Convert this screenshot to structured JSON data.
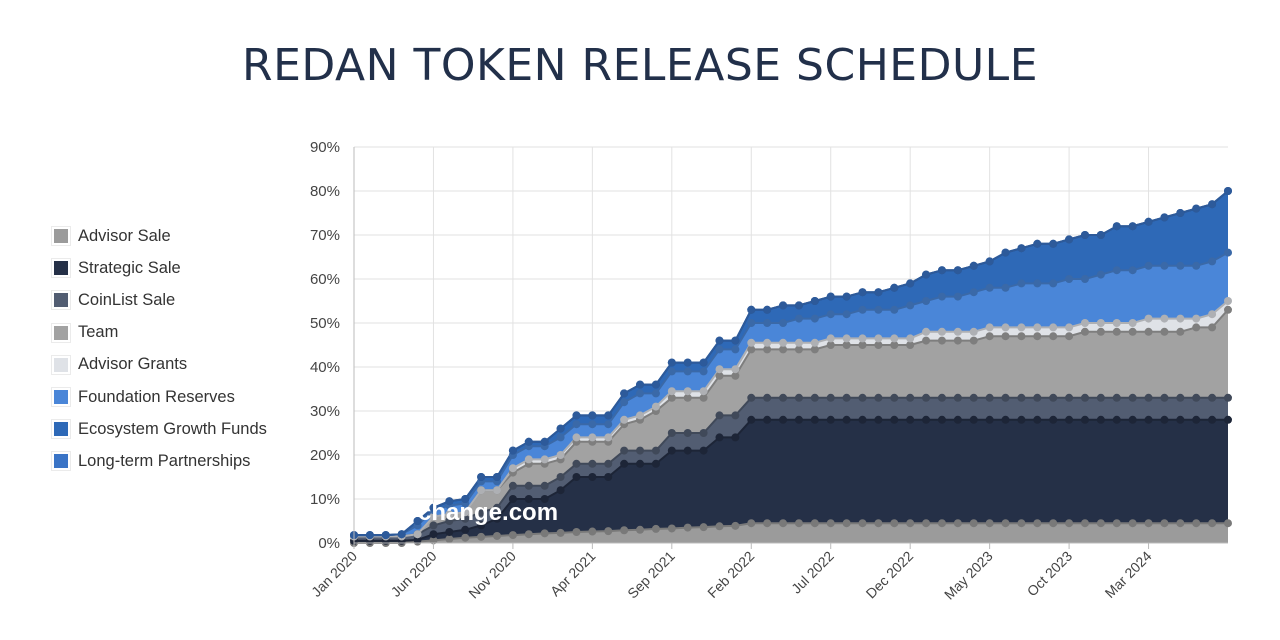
{
  "page": {
    "title": "REDAN TOKEN RELEASE SCHEDULE"
  },
  "watermark": "change.com",
  "chart_data": {
    "type": "area",
    "stacked": true,
    "title": "REDAN TOKEN RELEASE SCHEDULE",
    "xlabel": "",
    "ylabel": "",
    "ylim": [
      0,
      90
    ],
    "yticks": [
      "0%",
      "10%",
      "20%",
      "30%",
      "40%",
      "50%",
      "60%",
      "70%",
      "80%",
      "90%"
    ],
    "xticks": [
      "Jan 2020",
      "Jun 2020",
      "Nov 2020",
      "Apr 2021",
      "Sep 2021",
      "Feb 2022",
      "Jul 2022",
      "Dec 2022",
      "May 2023",
      "Oct 2023",
      "Mar 2024"
    ],
    "x": [
      "Jan 2020",
      "Feb 2020",
      "Mar 2020",
      "Apr 2020",
      "May 2020",
      "Jun 2020",
      "Jul 2020",
      "Aug 2020",
      "Sep 2020",
      "Oct 2020",
      "Nov 2020",
      "Dec 2020",
      "Jan 2021",
      "Feb 2021",
      "Mar 2021",
      "Apr 2021",
      "May 2021",
      "Jun 2021",
      "Jul 2021",
      "Aug 2021",
      "Sep 2021",
      "Oct 2021",
      "Nov 2021",
      "Dec 2021",
      "Jan 2022",
      "Feb 2022",
      "Mar 2022",
      "Apr 2022",
      "May 2022",
      "Jun 2022",
      "Jul 2022",
      "Aug 2022",
      "Sep 2022",
      "Oct 2022",
      "Nov 2022",
      "Dec 2022",
      "Jan 2023",
      "Feb 2023",
      "Mar 2023",
      "Apr 2023",
      "May 2023",
      "Jun 2023",
      "Jul 2023",
      "Aug 2023",
      "Sep 2023",
      "Oct 2023",
      "Nov 2023",
      "Dec 2023",
      "Jan 2024",
      "Feb 2024",
      "Mar 2024",
      "Apr 2024",
      "May 2024",
      "Jun 2024",
      "Jul 2024",
      "Aug 2024"
    ],
    "grid": true,
    "legend": "left",
    "series": [
      {
        "name": "Advisor Sale",
        "color": "#9b9b9b",
        "cumulative": [
          0,
          0,
          0,
          0,
          0.3,
          0.6,
          0.9,
          1.2,
          1.4,
          1.6,
          1.8,
          2.0,
          2.2,
          2.3,
          2.5,
          2.6,
          2.7,
          2.9,
          3.0,
          3.2,
          3.3,
          3.5,
          3.6,
          3.8,
          3.9,
          4.5,
          4.5,
          4.5,
          4.5,
          4.5,
          4.5,
          4.5,
          4.5,
          4.5,
          4.5,
          4.5,
          4.5,
          4.5,
          4.5,
          4.5,
          4.5,
          4.5,
          4.5,
          4.5,
          4.5,
          4.5,
          4.5,
          4.5,
          4.5,
          4.5,
          4.5,
          4.5,
          4.5,
          4.5,
          4.5,
          4.5
        ]
      },
      {
        "name": "Strategic Sale",
        "color": "#253047",
        "cumulative": [
          0.5,
          0.5,
          0.5,
          0.5,
          0.7,
          2.0,
          2.5,
          3.0,
          4.0,
          5.5,
          10,
          10,
          10,
          12,
          15,
          15,
          15,
          18,
          18,
          18,
          21,
          21,
          21,
          24,
          24,
          28,
          28,
          28,
          28,
          28,
          28,
          28,
          28,
          28,
          28,
          28,
          28,
          28,
          28,
          28,
          28,
          28,
          28,
          28,
          28,
          28,
          28,
          28,
          28,
          28,
          28,
          28,
          28,
          28,
          28,
          28
        ]
      },
      {
        "name": "CoinList Sale",
        "color": "#525d72",
        "cumulative": [
          1.5,
          1.5,
          1.5,
          1.5,
          2.0,
          4.0,
          5.0,
          5.5,
          7.0,
          8.0,
          13,
          13,
          13,
          15,
          18,
          18,
          18,
          21,
          21,
          21,
          25,
          25,
          25,
          29,
          29,
          33,
          33,
          33,
          33,
          33,
          33,
          33,
          33,
          33,
          33,
          33,
          33,
          33,
          33,
          33,
          33,
          33,
          33,
          33,
          33,
          33,
          33,
          33,
          33,
          33,
          33,
          33,
          33,
          33,
          33,
          33
        ]
      },
      {
        "name": "Team",
        "color": "#a2a2a2",
        "cumulative": [
          1.5,
          1.5,
          1.5,
          1.5,
          2.0,
          6.0,
          6.5,
          7.0,
          12,
          12,
          16,
          18,
          18,
          19,
          23,
          23,
          23,
          27,
          28,
          30,
          33,
          33,
          33,
          38,
          38,
          44,
          44,
          44,
          44,
          44,
          45,
          45,
          45,
          45,
          45,
          45,
          46,
          46,
          46,
          46,
          47,
          47,
          47,
          47,
          47,
          47,
          48,
          48,
          48,
          48,
          48,
          48,
          48,
          49,
          49,
          53
        ]
      },
      {
        "name": "Advisor Grants",
        "color": "#dfe2e7",
        "cumulative": [
          1.5,
          1.5,
          1.5,
          1.5,
          2.0,
          6.0,
          6.5,
          7.0,
          12,
          12,
          17,
          19,
          19,
          20,
          24,
          24,
          24,
          28,
          29,
          31,
          34.5,
          34.5,
          34.5,
          39.5,
          39.5,
          45.5,
          45.5,
          45.5,
          45.5,
          45.5,
          46.5,
          46.5,
          46.5,
          46.5,
          46.5,
          46.5,
          48,
          48,
          48,
          48,
          49,
          49,
          49,
          49,
          49,
          49,
          50,
          50,
          50,
          50,
          51,
          51,
          51,
          51,
          52,
          55
        ]
      },
      {
        "name": "Foundation Reserves",
        "color": "#4a86d8",
        "cumulative": [
          1.8,
          1.8,
          1.8,
          2,
          4,
          7.5,
          8.5,
          9,
          14,
          14,
          20,
          22,
          22,
          24,
          27,
          27,
          27,
          32,
          34,
          34,
          39,
          39,
          39,
          44,
          44,
          50,
          50,
          50,
          51,
          51,
          52,
          52,
          53,
          53,
          53,
          54,
          55,
          56,
          56,
          57,
          58,
          58,
          59,
          59,
          59,
          60,
          60,
          61,
          62,
          62,
          63,
          63,
          63,
          63,
          64,
          66
        ]
      },
      {
        "name": "Ecosystem Growth Funds",
        "color": "#2e69b7",
        "cumulative": [
          1.8,
          1.8,
          1.8,
          2,
          5,
          8,
          9.5,
          10,
          15,
          15,
          21,
          23,
          23,
          26,
          29,
          29,
          29,
          34,
          36,
          36,
          41,
          41,
          41,
          46,
          46,
          53,
          53,
          54,
          54,
          55,
          56,
          56,
          57,
          57,
          58,
          59,
          61,
          62,
          62,
          63,
          64,
          66,
          67,
          68,
          68,
          69,
          70,
          70,
          72,
          72,
          73,
          74,
          75,
          76,
          77,
          80
        ]
      },
      {
        "name": "Long-term Partnerships",
        "color": "#3a74c6",
        "cumulative": [
          1.8,
          1.8,
          1.8,
          2,
          5,
          8,
          9.5,
          10,
          15,
          15,
          21,
          23,
          23,
          26,
          29,
          29,
          29,
          34,
          36,
          36,
          41,
          41,
          41,
          46,
          46,
          53,
          53,
          54,
          54,
          55,
          56,
          56,
          57,
          57,
          58,
          59,
          61,
          62,
          62,
          63,
          64,
          66,
          67,
          68,
          68,
          69,
          70,
          70,
          72,
          72,
          73,
          74,
          75,
          76,
          77,
          80
        ]
      }
    ]
  }
}
